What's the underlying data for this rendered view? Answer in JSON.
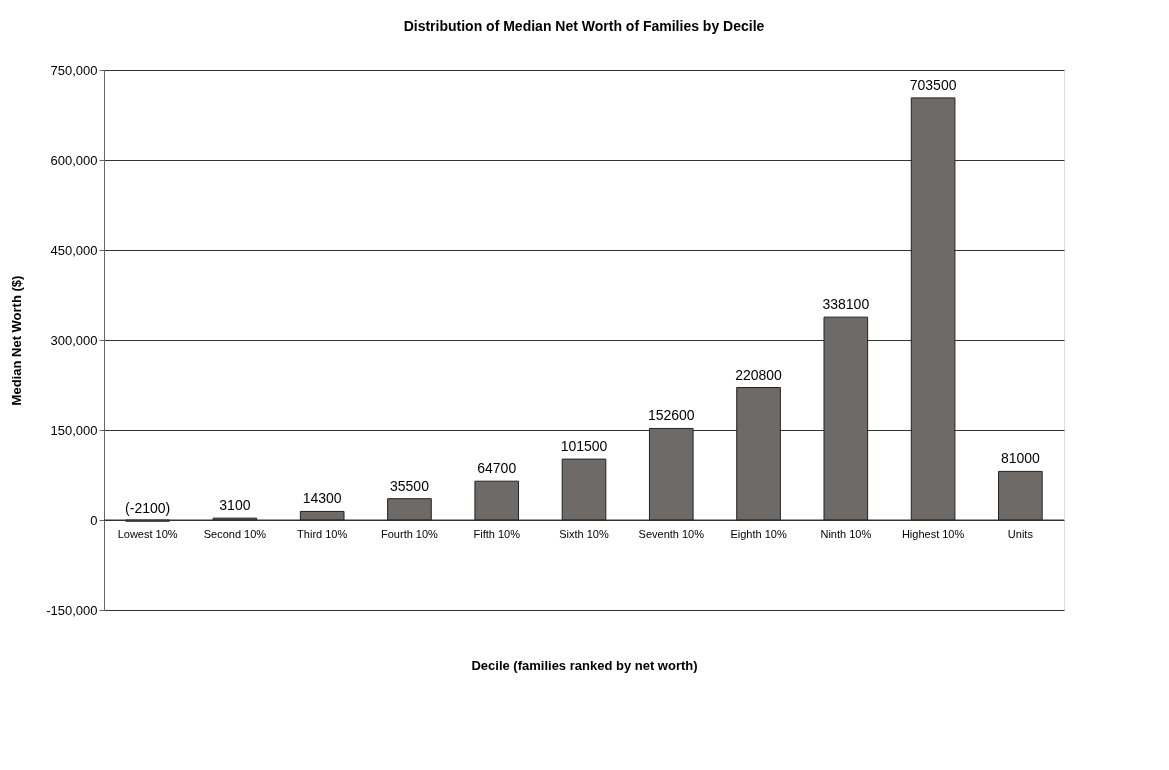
{
  "chart_data": {
    "type": "bar",
    "title": "Distribution of Median Net Worth of Families by Decile",
    "xlabel": "Decile (families ranked by net worth)",
    "ylabel": "Median Net Worth ($)",
    "categories": [
      "Lowest 10%",
      "Second 10%",
      "Third 10%",
      "Fourth 10%",
      "Fifth 10%",
      "Sixth 10%",
      "Seventh 10%",
      "Eighth 10%",
      "Ninth 10%",
      "Highest 10%",
      "Units"
    ],
    "values": [
      -2100,
      3100,
      14300,
      35500,
      64700,
      101500,
      152600,
      220800,
      338100,
      703500,
      81000
    ],
    "value_labels": [
      "(-2100)",
      "3100",
      "14300",
      "35500",
      "64700",
      "101500",
      "152600",
      "220800",
      "338100",
      "703500",
      "81000"
    ],
    "color": "#6e6a68",
    "ylim": [
      -150000,
      750000
    ],
    "yticks": [
      {
        "value": -150000,
        "label": "-150,000"
      },
      0,
      {
        "value": 150000,
        "label": "150,000"
      },
      {
        "value": 300000,
        "label": "300,000"
      },
      {
        "value": 450000,
        "label": "450,000"
      },
      {
        "value": 600000,
        "label": "600,000"
      },
      {
        "value": 750000,
        "label": "750,000"
      }
    ],
    "grid": "y"
  }
}
